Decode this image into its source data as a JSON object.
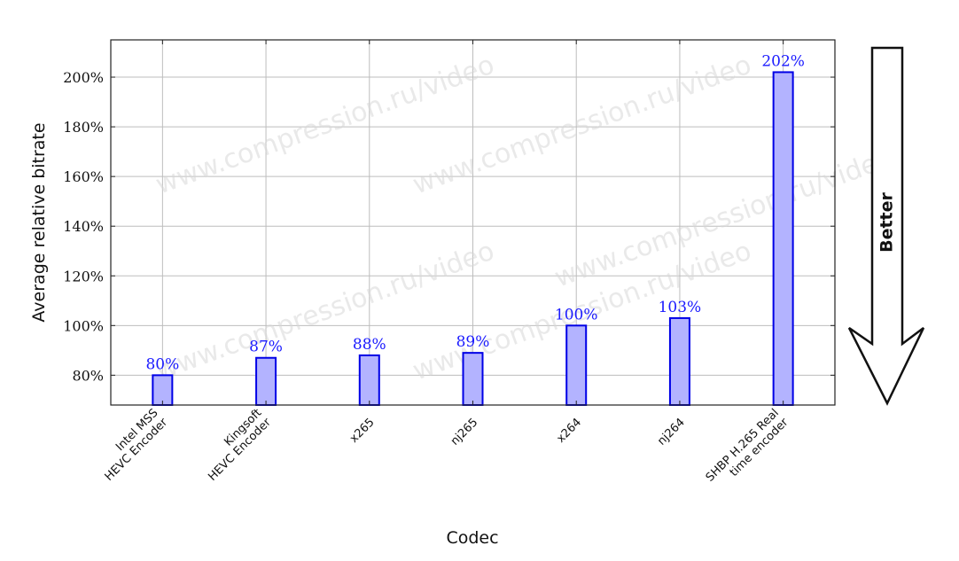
{
  "chart_data": {
    "type": "bar",
    "categories": [
      [
        "Intel MSS",
        "HEVC Encoder"
      ],
      [
        "Kingsoft",
        "HEVC Encoder"
      ],
      [
        "x265"
      ],
      [
        "nj265"
      ],
      [
        "x264"
      ],
      [
        "nj264"
      ],
      [
        "SHBP H.265 Real",
        "time encoder"
      ]
    ],
    "values": [
      80,
      87,
      88,
      89,
      100,
      103,
      202
    ],
    "value_labels": [
      "80%",
      "87%",
      "88%",
      "89%",
      "100%",
      "103%",
      "202%"
    ],
    "xlabel": "Codec",
    "ylabel": "Average relative bitrate",
    "ylim": [
      68,
      215
    ],
    "yticks": [
      80,
      100,
      120,
      140,
      160,
      180,
      200
    ],
    "ytick_labels": [
      "80%",
      "100%",
      "120%",
      "140%",
      "160%",
      "180%",
      "200%"
    ],
    "grid": true,
    "colors": {
      "bar_fill": "#b3b3ff",
      "bar_stroke": "#0000e6",
      "label": "#1a1aff",
      "grid": "#bdbdbd"
    },
    "watermark": "www.compression.ru/video",
    "side_arrow": {
      "label": "Better",
      "direction": "down"
    }
  }
}
